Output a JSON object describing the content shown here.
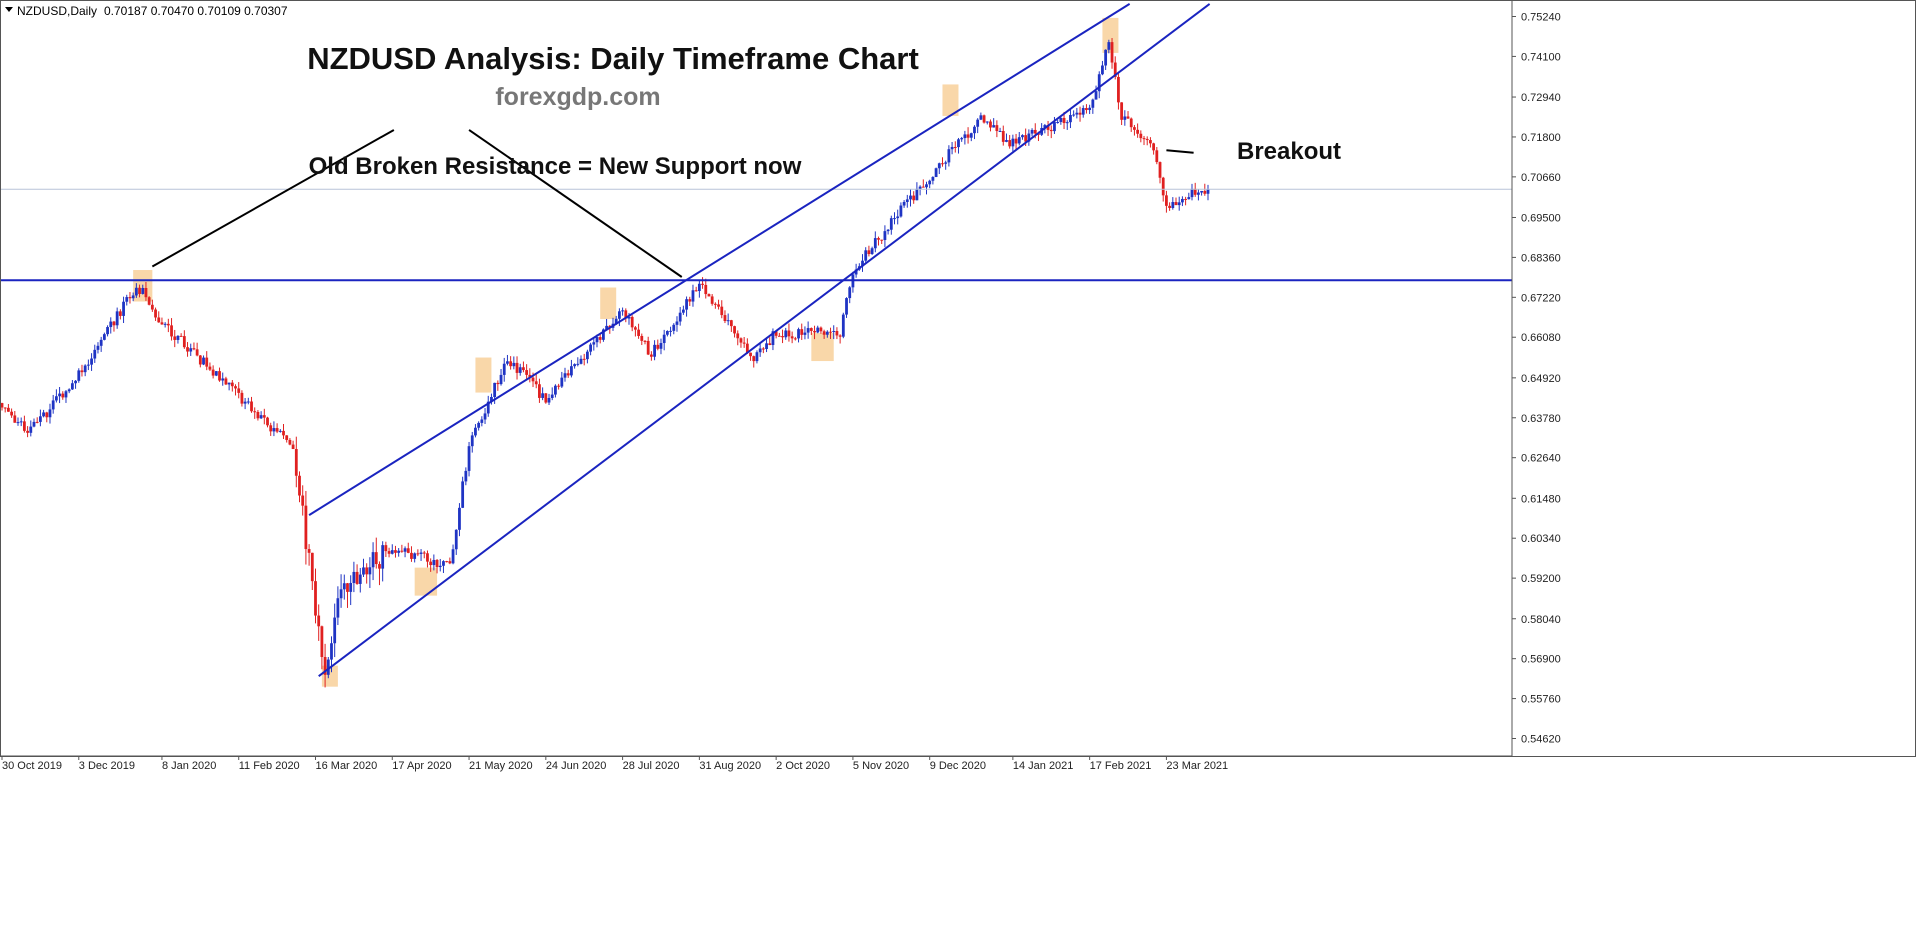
{
  "header": {
    "symbol": "NZDUSD,Daily",
    "ohlc": "0.70187 0.70470 0.70109 0.70307"
  },
  "annotations": {
    "title": "NZDUSD Analysis: Daily Timeframe Chart",
    "watermark": "forexgdp.com",
    "resistance_note": "Old Broken Resistance = New Support now",
    "breakout": "Breakout"
  },
  "chart_data": {
    "type": "candlestick",
    "ylim": [
      0.5418,
      0.7568
    ],
    "y_ticks": [
      "0.75240",
      "0.74100",
      "0.72940",
      "0.71800",
      "0.70660",
      "0.69500",
      "0.68360",
      "0.67220",
      "0.66080",
      "0.64920",
      "0.63780",
      "0.62640",
      "0.61480",
      "0.60340",
      "0.59200",
      "0.58040",
      "0.56900",
      "0.55760",
      "0.54620"
    ],
    "x_ticks": [
      "30 Oct 2019",
      "3 Dec 2019",
      "8 Jan 2020",
      "11 Feb 2020",
      "16 Mar 2020",
      "17 Apr 2020",
      "21 May 2020",
      "24 Jun 2020",
      "28 Jul 2020",
      "31 Aug 2020",
      "2 Oct 2020",
      "5 Nov 2020",
      "9 Dec 2020",
      "14 Jan 2021",
      "17 Feb 2021",
      "23 Mar 2021"
    ],
    "current_price": "0.70307",
    "current_price_value": 0.70307,
    "horizontal_level": "0.67707",
    "horizontal_level_value": 0.67707,
    "period": "Daily",
    "price_anchors": [
      {
        "date": "30 Oct 2019",
        "price": 0.642
      },
      {
        "date": "11 Nov 2019",
        "price": 0.633
      },
      {
        "date": "3 Dec 2019",
        "price": 0.65
      },
      {
        "date": "26 Dec 2019",
        "price": 0.674
      },
      {
        "date": "31 Dec 2019",
        "price": 0.674
      },
      {
        "date": "8 Jan 2020",
        "price": 0.665
      },
      {
        "date": "11 Feb 2020",
        "price": 0.644
      },
      {
        "date": "5 Mar 2020",
        "price": 0.629
      },
      {
        "date": "10 Mar 2020",
        "price": 0.61
      },
      {
        "date": "19 Mar 2020",
        "price": 0.565
      },
      {
        "date": "26 Mar 2020",
        "price": 0.589
      },
      {
        "date": "17 Apr 2020",
        "price": 0.601
      },
      {
        "date": "13 May 2020",
        "price": 0.595
      },
      {
        "date": "21 May 2020",
        "price": 0.63
      },
      {
        "date": "8 Jun 2020",
        "price": 0.655
      },
      {
        "date": "24 Jun 2020",
        "price": 0.643
      },
      {
        "date": "28 Jul 2020",
        "price": 0.668
      },
      {
        "date": "10 Aug 2020",
        "price": 0.656
      },
      {
        "date": "31 Aug 2020",
        "price": 0.676
      },
      {
        "date": "23 Sep 2020",
        "price": 0.655
      },
      {
        "date": "2 Oct 2020",
        "price": 0.662
      },
      {
        "date": "30 Oct 2020",
        "price": 0.662
      },
      {
        "date": "5 Nov 2020",
        "price": 0.68
      },
      {
        "date": "9 Dec 2020",
        "price": 0.707
      },
      {
        "date": "31 Dec 2020",
        "price": 0.723
      },
      {
        "date": "14 Jan 2021",
        "price": 0.716
      },
      {
        "date": "17 Feb 2021",
        "price": 0.726
      },
      {
        "date": "25 Feb 2021",
        "price": 0.745
      },
      {
        "date": "3 Mar 2021",
        "price": 0.724
      },
      {
        "date": "17 Mar 2021",
        "price": 0.715
      },
      {
        "date": "23 Mar 2021",
        "price": 0.698
      },
      {
        "date": "6 Apr 2021",
        "price": 0.703
      }
    ],
    "channel_lines": [
      {
        "name": "upper",
        "from": {
          "date": "12 Mar 2020",
          "price": 0.61
        },
        "to": {
          "date": "6 Mar 2021",
          "price": 0.756
        }
      },
      {
        "name": "lower",
        "from": {
          "date": "17 Mar 2020",
          "price": 0.564
        },
        "to": {
          "date": "24 Apr 2021",
          "price": 0.756
        }
      }
    ],
    "pointer_lines": [
      {
        "from": {
          "date": "3 Jan 2020",
          "price": 0.681
        },
        "to": {
          "date": "18 Apr 2020",
          "price": 0.72
        }
      },
      {
        "from": {
          "date": "21 May 2020",
          "price": 0.72
        },
        "to": {
          "date": "23 Aug 2020",
          "price": 0.678
        }
      },
      {
        "from": {
          "date": "23 Mar 2021",
          "price": 0.7142
        },
        "to": {
          "date": "3 Apr 2021",
          "price": 0.7135
        }
      }
    ],
    "highlight_zones": [
      {
        "from": "26 Dec 2019",
        "to": "3 Jan 2020",
        "low": 0.671,
        "high": 0.68
      },
      {
        "from": "18 Mar 2020",
        "to": "25 Mar 2020",
        "low": 0.561,
        "high": 0.567
      },
      {
        "from": "28 Apr 2020",
        "to": "7 May 2020",
        "low": 0.587,
        "high": 0.595
      },
      {
        "from": "25 May 2020",
        "to": "1 Jun 2020",
        "low": 0.645,
        "high": 0.655
      },
      {
        "from": "17 Jul 2020",
        "to": "24 Jul 2020",
        "low": 0.666,
        "high": 0.675
      },
      {
        "from": "19 Oct 2020",
        "to": "28 Oct 2020",
        "low": 0.654,
        "high": 0.662
      },
      {
        "from": "15 Dec 2020",
        "to": "22 Dec 2020",
        "low": 0.724,
        "high": 0.733
      },
      {
        "from": "23 Feb 2021",
        "to": "2 Mar 2021",
        "low": 0.742,
        "high": 0.752
      }
    ]
  },
  "colors": {
    "bull": "#1f34c4",
    "bear": "#e02020",
    "channel": "#1a24c0",
    "highlight": "#f7c98c",
    "grid": "#e8e8e8",
    "axis_text": "#222222",
    "current_price_line": "#b8c4d8"
  }
}
